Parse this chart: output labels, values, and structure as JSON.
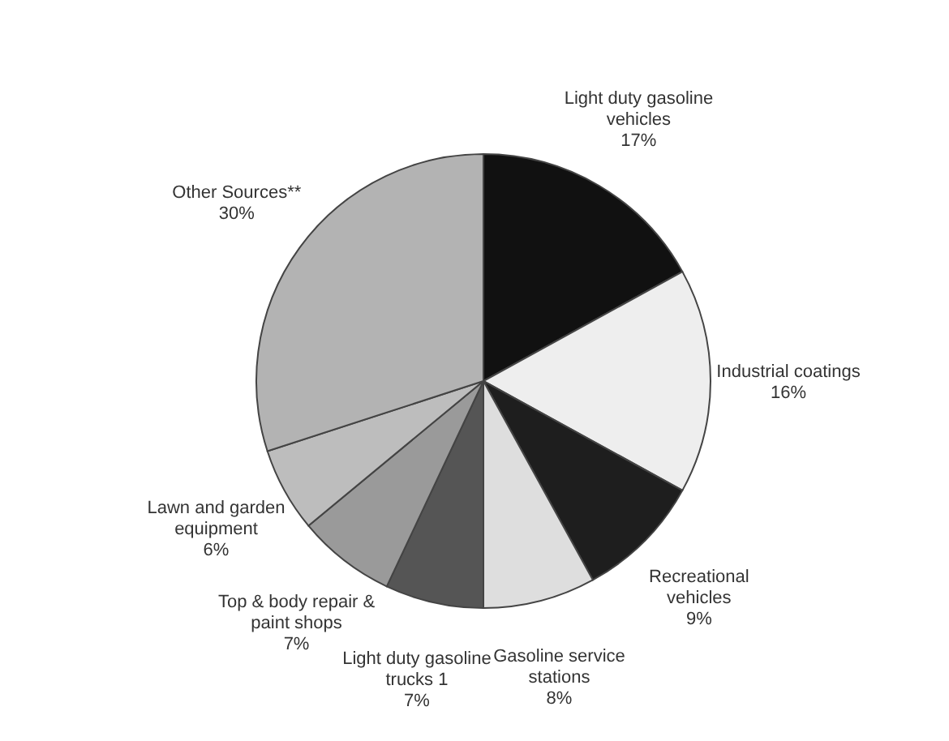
{
  "chart_data": {
    "type": "pie",
    "categories": [
      "Light duty gasoline vehicles",
      "Industrial coatings",
      "Recreational vehicles",
      "Gasoline service stations",
      "Light duty gasoline trucks 1",
      "Top & body repair & paint shops",
      "Lawn and garden equipment",
      "Other Sources**"
    ],
    "values": [
      17,
      16,
      9,
      8,
      7,
      7,
      6,
      30
    ],
    "value_labels": [
      "17%",
      "16%",
      "9%",
      "8%",
      "7%",
      "7%",
      "6%",
      "30%"
    ],
    "colors": [
      "#111111",
      "#eeeeee",
      "#1e1e1e",
      "#dedede",
      "#555555",
      "#9a9a9a",
      "#bdbdbd",
      "#b3b3b3"
    ],
    "legend": false
  }
}
